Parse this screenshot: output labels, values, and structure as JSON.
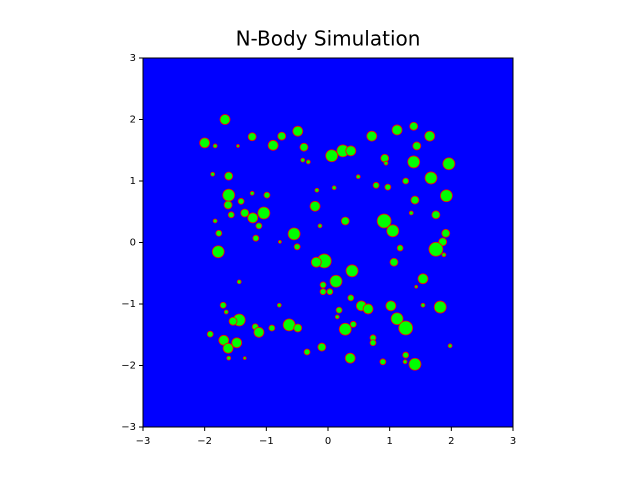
{
  "chart_data": {
    "type": "scatter",
    "title": "N-Body Simulation",
    "x": [
      -1.67,
      -2.0,
      -1.83,
      -1.46,
      -1.23,
      -0.89,
      -0.75,
      -0.49,
      -0.39,
      -0.41,
      -0.32,
      0.06,
      0.24,
      0.37,
      0.49,
      0.71,
      1.12,
      1.39,
      1.65,
      1.44,
      0.92,
      0.94,
      1.39,
      1.96,
      1.26,
      1.67,
      0.78,
      0.97,
      1.41,
      1.92,
      1.35,
      1.75,
      0.91,
      1.05,
      1.91,
      1.86,
      1.75,
      1.88,
      1.17,
      1.07,
      1.54,
      1.43,
      1.82,
      1.54,
      1.02,
      1.12,
      1.26,
      0.73,
      0.73,
      1.26,
      1.25,
      1.41,
      0.89,
      1.98,
      0.36,
      -0.1,
      -0.34,
      0.28,
      0.41,
      0.18,
      0.15,
      0.54,
      0.65,
      0.37,
      0.13,
      0.39,
      -0.06,
      -0.19,
      -0.08,
      -0.08,
      0.03,
      -0.5,
      -0.55,
      -0.13,
      0.28,
      -0.21,
      -0.18,
      0.1,
      -0.78,
      -1.78,
      -1.77,
      -1.83,
      -1.87,
      -1.61,
      -1.61,
      -1.62,
      -1.57,
      -1.41,
      -1.35,
      -1.23,
      -0.99,
      -1.22,
      -1.04,
      -1.12,
      -1.17,
      -1.44,
      -0.79,
      -1.7,
      -1.65,
      -1.44,
      -1.54,
      -1.18,
      -1.12,
      -0.91,
      -0.63,
      -0.49,
      -1.91,
      -1.69,
      -1.48,
      -1.62,
      -1.61,
      -1.35
    ],
    "values": [
      2.0,
      1.62,
      1.57,
      1.57,
      1.72,
      1.58,
      1.73,
      1.81,
      1.55,
      1.34,
      1.31,
      1.41,
      1.49,
      1.49,
      1.07,
      1.73,
      1.83,
      1.89,
      1.73,
      1.57,
      1.37,
      1.29,
      1.31,
      1.28,
      1.0,
      1.05,
      0.93,
      0.9,
      0.69,
      0.76,
      0.48,
      0.45,
      0.35,
      0.19,
      0.15,
      0.01,
      -0.11,
      -0.2,
      -0.09,
      -0.32,
      -0.59,
      -0.72,
      -1.05,
      -1.02,
      -1.03,
      -1.24,
      -1.39,
      -1.55,
      -1.63,
      -1.83,
      -1.94,
      -1.98,
      -1.94,
      -1.68,
      -1.88,
      -1.7,
      -1.78,
      -1.41,
      -1.33,
      -1.1,
      -1.21,
      -1.03,
      -1.08,
      -0.9,
      -0.63,
      -0.46,
      -0.3,
      -0.32,
      -0.69,
      -0.8,
      -0.8,
      -0.07,
      0.14,
      0.27,
      0.35,
      0.59,
      0.85,
      0.89,
      0.01,
      -0.15,
      0.15,
      0.35,
      1.11,
      1.08,
      0.77,
      0.61,
      0.45,
      0.67,
      0.48,
      0.8,
      0.77,
      0.4,
      0.48,
      0.27,
      0.07,
      -0.64,
      -1.02,
      -1.02,
      -1.13,
      -1.26,
      -1.28,
      -1.37,
      -1.46,
      -1.39,
      -1.34,
      -1.39,
      -1.49,
      -1.59,
      -1.63,
      -1.72,
      -1.88,
      -1.88
    ],
    "sizes": [
      100,
      100,
      16,
      9,
      64,
      100,
      64,
      100,
      64,
      16,
      16,
      144,
      144,
      100,
      16,
      100,
      100,
      64,
      100,
      64,
      64,
      16,
      144,
      144,
      36,
      144,
      36,
      36,
      64,
      144,
      16,
      64,
      196,
      144,
      64,
      64,
      196,
      16,
      36,
      64,
      100,
      9,
      144,
      16,
      100,
      144,
      196,
      36,
      36,
      36,
      16,
      144,
      36,
      16,
      100,
      64,
      36,
      144,
      36,
      36,
      16,
      100,
      100,
      36,
      144,
      144,
      196,
      100,
      36,
      36,
      36,
      36,
      144,
      16,
      64,
      100,
      16,
      16,
      9,
      144,
      36,
      16,
      16,
      64,
      144,
      64,
      36,
      36,
      64,
      16,
      36,
      100,
      144,
      36,
      36,
      16,
      16,
      36,
      16,
      144,
      64,
      36,
      100,
      36,
      144,
      64,
      36,
      100,
      100,
      100,
      16,
      9
    ],
    "color": "#00ff00",
    "edgecolor": "#ff0000",
    "background": "#0000ff",
    "xlim": [
      -3,
      3
    ],
    "ylim": [
      -3,
      3
    ],
    "xticks": [
      {
        "value": -3,
        "label": "−3"
      },
      {
        "value": -2,
        "label": "−2"
      },
      {
        "value": -1,
        "label": "−1"
      },
      0,
      1,
      2,
      3
    ],
    "yticks": [
      {
        "value": -3,
        "label": "−3"
      },
      {
        "value": -2,
        "label": "−2"
      },
      {
        "value": -1,
        "label": "−1"
      },
      0,
      1,
      2,
      3
    ]
  }
}
